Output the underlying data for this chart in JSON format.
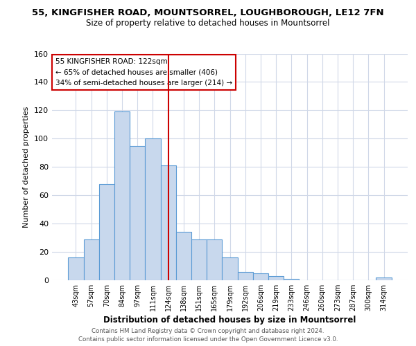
{
  "title_line1": "55, KINGFISHER ROAD, MOUNTSORREL, LOUGHBOROUGH, LE12 7FN",
  "title_line2": "Size of property relative to detached houses in Mountsorrel",
  "xlabel": "Distribution of detached houses by size in Mountsorrel",
  "ylabel": "Number of detached properties",
  "bin_labels": [
    "43sqm",
    "57sqm",
    "70sqm",
    "84sqm",
    "97sqm",
    "111sqm",
    "124sqm",
    "138sqm",
    "151sqm",
    "165sqm",
    "179sqm",
    "192sqm",
    "206sqm",
    "219sqm",
    "233sqm",
    "246sqm",
    "260sqm",
    "273sqm",
    "287sqm",
    "300sqm",
    "314sqm"
  ],
  "bar_heights": [
    16,
    29,
    68,
    119,
    95,
    100,
    81,
    34,
    29,
    29,
    16,
    6,
    5,
    3,
    1,
    0,
    0,
    0,
    0,
    0,
    2
  ],
  "bar_color": "#c8d8ed",
  "bar_edge_color": "#5b9bd5",
  "vline_color": "#cc0000",
  "annotation_text": "55 KINGFISHER ROAD: 122sqm\n← 65% of detached houses are smaller (406)\n34% of semi-detached houses are larger (214) →",
  "annotation_box_color": "#ffffff",
  "annotation_box_edge_color": "#cc0000",
  "ylim": [
    0,
    160
  ],
  "yticks": [
    0,
    20,
    40,
    60,
    80,
    100,
    120,
    140,
    160
  ],
  "footer_line1": "Contains HM Land Registry data © Crown copyright and database right 2024.",
  "footer_line2": "Contains public sector information licensed under the Open Government Licence v3.0.",
  "bg_color": "#ffffff",
  "plot_bg_color": "#ffffff",
  "grid_color": "#d0d8e8"
}
